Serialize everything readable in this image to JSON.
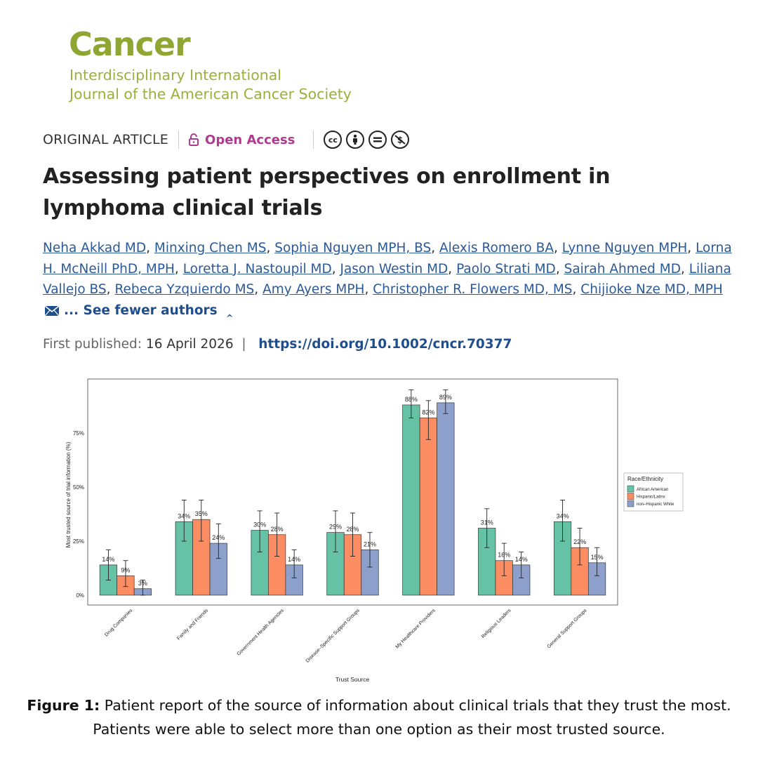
{
  "journal": {
    "name": "Cancer",
    "subtitle_line1": "Interdisciplinary International",
    "subtitle_line2": "Journal of the American Cancer Society"
  },
  "article": {
    "type": "ORIGINAL ARTICLE",
    "access": "Open Access",
    "license_icons": [
      "cc-icon",
      "attribution-icon",
      "no-derivatives-icon",
      "non-commercial-icon"
    ],
    "title": "Assessing patient perspectives on enrollment in lymphoma clinical trials",
    "authors": [
      "Neha Akkad MD",
      "Minxing Chen MS",
      "Sophia Nguyen MPH, BS",
      "Alexis Romero BA",
      "Lynne Nguyen MPH",
      "Lorna H. McNeill PhD, MPH",
      "Loretta J. Nastoupil MD",
      "Jason Westin MD",
      "Paolo Strati MD",
      "Sairah Ahmed MD",
      "Liliana Vallejo BS",
      "Rebeca Yzquierdo MS",
      "Amy Ayers MPH",
      "Christopher R. Flowers MD, MS",
      "Chijioke Nze MD, MPH"
    ],
    "see_fewer": "... See fewer authors",
    "published_label": "First published:",
    "published_date": "16 April 2026",
    "doi": "https://doi.org/10.1002/cncr.70377"
  },
  "colors": {
    "journal_green": "#8fa633",
    "open_access": "#b03a8e",
    "link": "#1f4e8c",
    "series": [
      "#66c2a5",
      "#fc8d62",
      "#8da0cb"
    ]
  },
  "chart_data": {
    "type": "bar",
    "xlabel": "Trust Source",
    "ylabel": "Most trusted source of trial information (%)",
    "ylim": [
      0,
      95
    ],
    "yticks": [
      "0%",
      "25%",
      "50%",
      "75%"
    ],
    "ytick_values": [
      0,
      25,
      50,
      75
    ],
    "categories": [
      "Drug Companies",
      "Family and Friends",
      "Government Health Agencies",
      "Disease–Specific Support Groups",
      "My Healthcare Providers",
      "Religious Leaders",
      "General Support Groups"
    ],
    "legend_title": "Race/Ethnicity",
    "legend_position": "right",
    "series": [
      {
        "name": "African American",
        "values": [
          14,
          34,
          30,
          29,
          88,
          31,
          34
        ],
        "labels": [
          "14%",
          "34%",
          "30%",
          "29%",
          "88%",
          "31%",
          "34%"
        ],
        "err_low": [
          7,
          25,
          20,
          20,
          82,
          22,
          25
        ],
        "err_high": [
          21,
          44,
          39,
          39,
          95,
          40,
          44
        ]
      },
      {
        "name": "Hispanic/Latinx",
        "values": [
          9,
          35,
          28,
          28,
          82,
          16,
          22
        ],
        "labels": [
          "9%",
          "35%",
          "28%",
          "28%",
          "82%",
          "16%",
          "22%"
        ],
        "err_low": [
          4,
          25,
          18,
          18,
          72,
          9,
          14
        ],
        "err_high": [
          16,
          44,
          38,
          38,
          90,
          24,
          31
        ]
      },
      {
        "name": "non–Hispanic White",
        "values": [
          3,
          24,
          14,
          21,
          89,
          14,
          15
        ],
        "labels": [
          "3%",
          "24%",
          "14%",
          "21%",
          "89%",
          "14%",
          "15%"
        ],
        "err_low": [
          0,
          17,
          8,
          13,
          84,
          8,
          9
        ],
        "err_high": [
          7,
          33,
          21,
          29,
          95,
          20,
          22
        ]
      }
    ]
  },
  "caption": {
    "label": "Figure 1:",
    "text": " Patient report of the source of information about clinical trials that they trust the most. Patients were able to select more than one option as their most trusted source."
  }
}
